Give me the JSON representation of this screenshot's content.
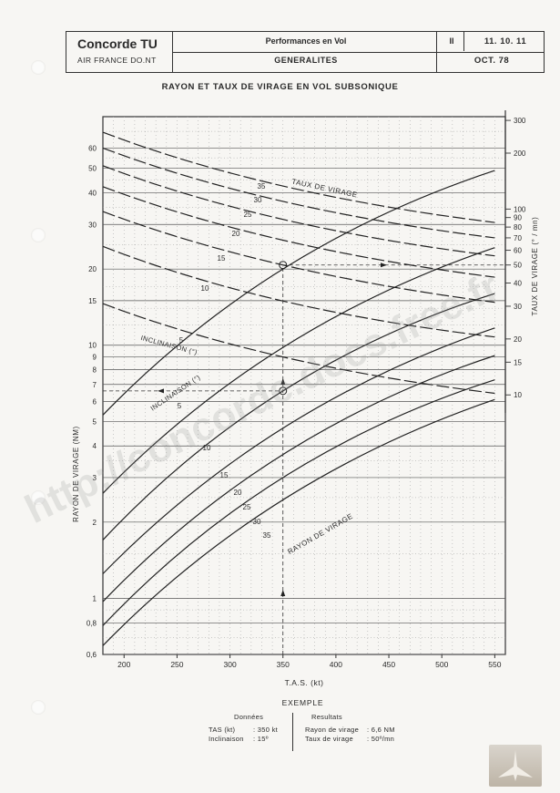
{
  "header": {
    "brand": "Concorde TU",
    "brand_sub": "AIR FRANCE DO.NT",
    "section_1": "Performances en Vol",
    "section_2": "GENERALITES",
    "volume": "II",
    "reference": "11. 10. 11",
    "date": "OCT. 78"
  },
  "chart_data": {
    "type": "line",
    "title": "RAYON ET TAUX DE VIRAGE EN VOL SUBSONIQUE",
    "xlabel": "T.A.S. (kt)",
    "ylabel_left": "RAYON DE VIRAGE (NM)",
    "ylabel_right": "TAUX DE VIRAGE (° / mn)",
    "x_ticks": [
      200,
      250,
      300,
      350,
      400,
      450,
      500,
      550
    ],
    "xlim": [
      180,
      560
    ],
    "y_scale": "log",
    "ylim": [
      0.6,
      80
    ],
    "y_ticks_left": [
      "0,6",
      "0,8",
      "1",
      "2",
      "3",
      "4",
      "5",
      "6",
      "7",
      "8",
      "9",
      "10",
      "15",
      "20",
      "30",
      "40",
      "50",
      "60"
    ],
    "y_ticks_right": [
      "10",
      "15",
      "20",
      "30",
      "40",
      "50",
      "60",
      "70",
      "80",
      "90",
      "100",
      "200",
      "300"
    ],
    "grid": true,
    "bank_angles_deg": [
      5,
      10,
      15,
      20,
      25,
      30,
      35
    ],
    "turn_radius_series": [
      {
        "name": "5",
        "values": [
          [
            180,
            5.3
          ],
          [
            350,
            20.0
          ],
          [
            550,
            49.0
          ]
        ]
      },
      {
        "name": "10",
        "values": [
          [
            180,
            2.6
          ],
          [
            350,
            9.8
          ],
          [
            550,
            24.3
          ]
        ]
      },
      {
        "name": "15",
        "values": [
          [
            180,
            1.7
          ],
          [
            350,
            6.6
          ],
          [
            550,
            16.0
          ]
        ]
      },
      {
        "name": "20",
        "values": [
          [
            180,
            1.25
          ],
          [
            350,
            4.7
          ],
          [
            550,
            11.7
          ]
        ]
      },
      {
        "name": "25",
        "values": [
          [
            180,
            0.97
          ],
          [
            350,
            3.7
          ],
          [
            550,
            9.1
          ]
        ]
      },
      {
        "name": "30",
        "values": [
          [
            180,
            0.78
          ],
          [
            350,
            3.0
          ],
          [
            550,
            7.3
          ]
        ]
      },
      {
        "name": "35",
        "values": [
          [
            180,
            0.65
          ],
          [
            350,
            2.45
          ],
          [
            550,
            6.1
          ]
        ]
      }
    ],
    "turn_rate_series": [
      {
        "name": "5",
        "values": [
          [
            180,
            31.0
          ],
          [
            350,
            16.0
          ],
          [
            550,
            10.2
          ]
        ]
      },
      {
        "name": "10",
        "values": [
          [
            180,
            63.0
          ],
          [
            350,
            32.0
          ],
          [
            550,
            20.5
          ]
        ]
      },
      {
        "name": "15",
        "values": [
          [
            180,
            97.0
          ],
          [
            350,
            50.0
          ],
          [
            550,
            31.5
          ]
        ]
      },
      {
        "name": "20",
        "values": [
          [
            180,
            132.0
          ],
          [
            350,
            68.0
          ],
          [
            550,
            43.0
          ]
        ]
      },
      {
        "name": "25",
        "values": [
          [
            180,
            171.0
          ],
          [
            350,
            88.0
          ],
          [
            550,
            56.0
          ]
        ]
      },
      {
        "name": "30",
        "values": [
          [
            180,
            213.0
          ],
          [
            350,
            110.0
          ],
          [
            550,
            70.0
          ]
        ]
      },
      {
        "name": "35",
        "values": [
          [
            180,
            259.0
          ],
          [
            350,
            133.0
          ],
          [
            550,
            84.7
          ]
        ]
      }
    ],
    "annotations": {
      "taux_de_virage": "TAUX DE VIRAGE",
      "rayon_de_virage": "RAYON DE VIRAGE",
      "inclinaison_upper": "INCLINAISON (°)",
      "inclinaison_lower": "INCLINAISON (°)"
    },
    "example_lines": {
      "tas": 350,
      "radius": 6.6,
      "rate": 50
    }
  },
  "example": {
    "title": "EXEMPLE",
    "inputs_header": "Données",
    "results_header": "Resultats",
    "inputs": [
      {
        "label": "TAS (kt)",
        "value": ": 350 kt"
      },
      {
        "label": "Inclinaison",
        "value": ": 15º"
      }
    ],
    "results": [
      {
        "label": "Rayon de virage",
        "value": ": 6,6 NM"
      },
      {
        "label": "Taux de virage",
        "value": ": 50º/mn"
      }
    ]
  },
  "watermark": "http://concorde.docs.free.fr"
}
